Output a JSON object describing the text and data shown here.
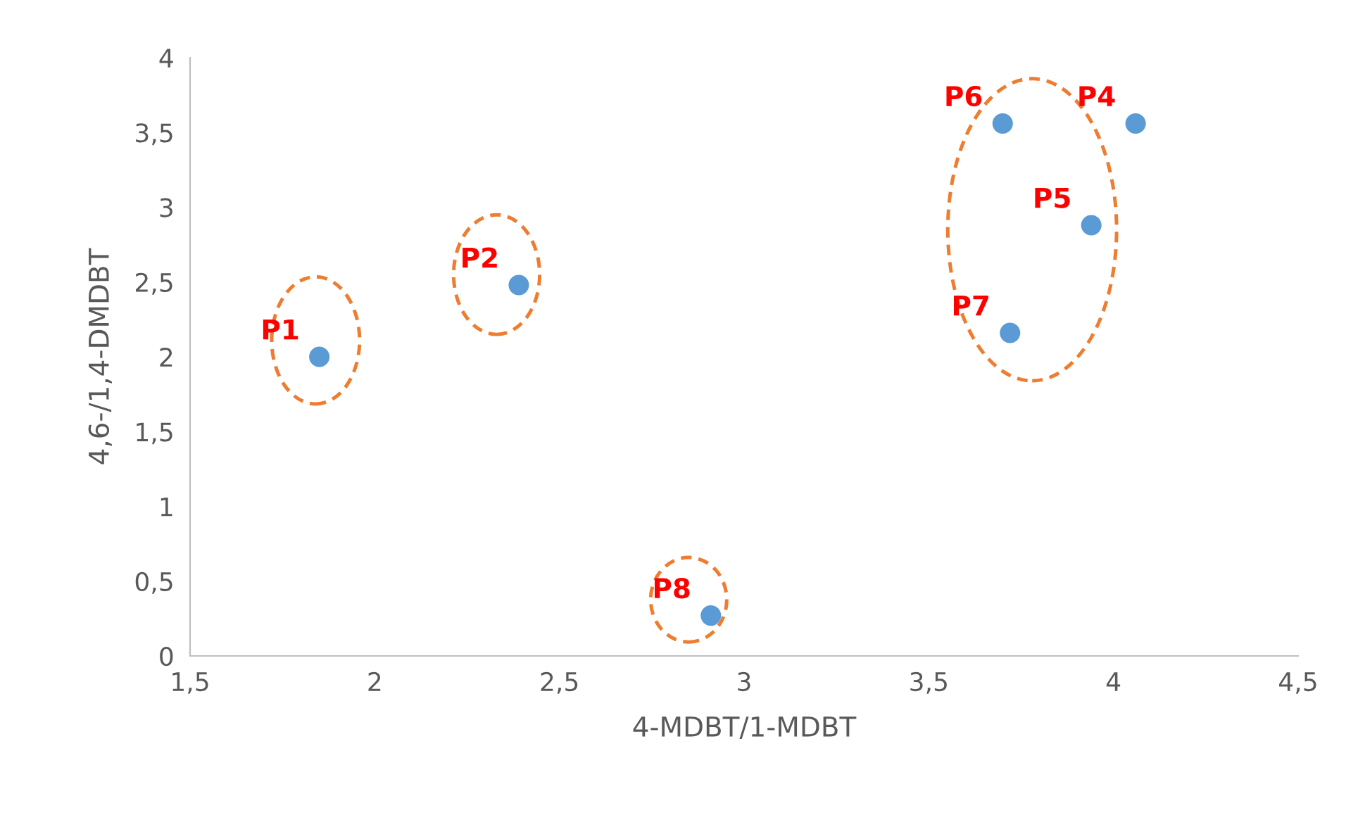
{
  "chart_data": {
    "type": "scatter",
    "xlabel": "4-MDBT/1-MDBT",
    "ylabel": "4,6-/1,4-DMDBT",
    "series": [
      {
        "color": "#5b9bd5",
        "x": [
          1.85,
          2.39,
          4.06,
          3.94,
          3.7,
          3.72,
          2.91
        ],
        "values": [
          2.0,
          2.48,
          3.56,
          2.88,
          3.56,
          2.16,
          0.27
        ]
      }
    ],
    "marker": "circle",
    "xlim": [
      1.5,
      4.5
    ],
    "xticks": [
      {
        "value": 1.5,
        "label": "1,5"
      },
      2,
      {
        "value": 2.5,
        "label": "2,5"
      },
      3,
      {
        "value": 3.5,
        "label": "3,5"
      },
      4,
      {
        "value": 4.5,
        "label": "4,5"
      }
    ],
    "ylim": [
      0,
      4
    ],
    "yticks": [
      0,
      {
        "value": 0.5,
        "label": "0,5"
      },
      1,
      {
        "value": 1.5,
        "label": "1,5"
      },
      2,
      {
        "value": 2.5,
        "label": "2,5"
      },
      3,
      {
        "value": 3.5,
        "label": "3,5"
      },
      4
    ],
    "grid": false,
    "legend": false,
    "annotations": [
      {
        "text": "P1",
        "x": 1.85,
        "y": 2.0
      },
      {
        "text": "P2",
        "x": 2.39,
        "y": 2.48
      },
      {
        "text": "P4",
        "x": 4.06,
        "y": 3.56
      },
      {
        "text": "P5",
        "x": 3.94,
        "y": 2.88
      },
      {
        "text": "P6",
        "x": 3.7,
        "y": 3.56
      },
      {
        "text": "P7",
        "x": 3.72,
        "y": 2.16
      },
      {
        "text": "P8",
        "x": 2.91,
        "y": 0.27
      }
    ]
  }
}
